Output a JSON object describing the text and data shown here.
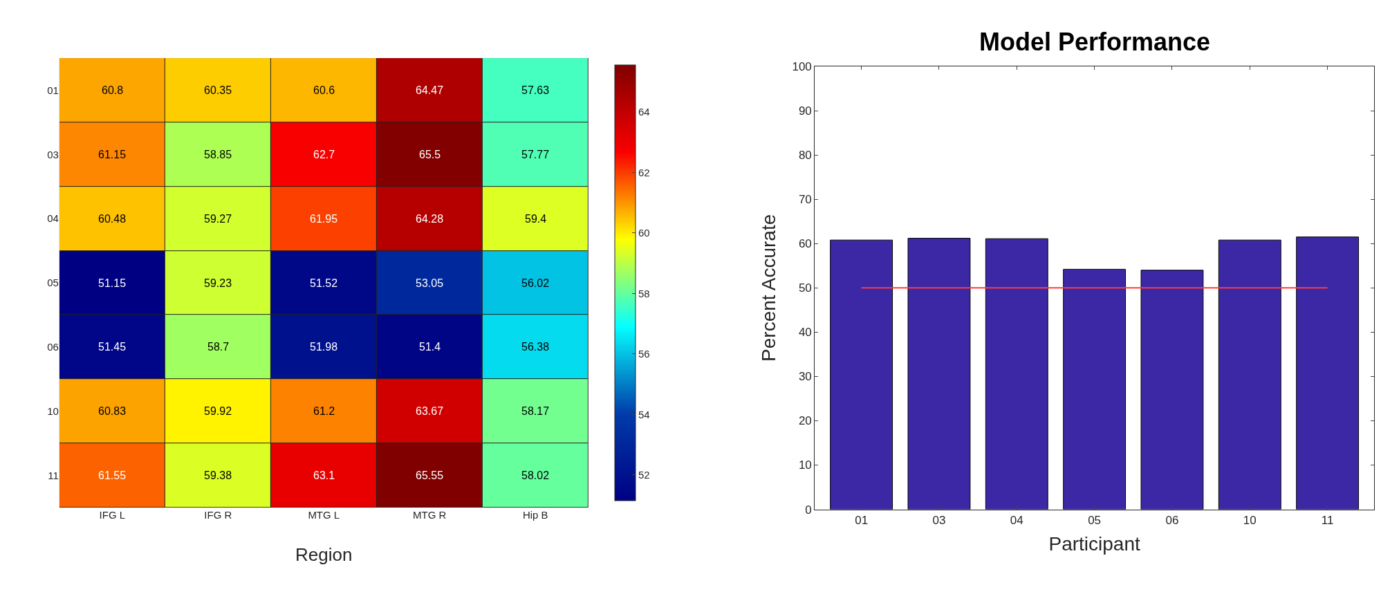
{
  "chart_data": [
    {
      "type": "heatmap",
      "xlabel": "Region",
      "categories": [
        "IFG L",
        "IFG R",
        "MTG L",
        "MTG R",
        "Hip B"
      ],
      "y_categories": [
        "01",
        "03",
        "04",
        "05",
        "06",
        "10",
        "11"
      ],
      "cells": [
        [
          60.8,
          60.35,
          60.6,
          64.47,
          57.63
        ],
        [
          61.15,
          58.85,
          62.7,
          65.5,
          57.77
        ],
        [
          60.48,
          59.27,
          61.95,
          64.28,
          59.4
        ],
        [
          51.15,
          59.23,
          51.52,
          53.05,
          56.02
        ],
        [
          51.45,
          58.7,
          51.98,
          51.4,
          56.38
        ],
        [
          60.83,
          59.92,
          61.2,
          63.67,
          58.17
        ],
        [
          61.55,
          59.38,
          63.1,
          65.55,
          58.02
        ]
      ],
      "data_labels": true,
      "clim": [
        51.15,
        65.55
      ],
      "cticks": [
        52,
        54,
        56,
        58,
        60,
        62,
        64
      ]
    },
    {
      "type": "bar",
      "title": "Model Performance",
      "xlabel": "Participant",
      "ylabel": "Percent Accurate",
      "categories": [
        "01",
        "03",
        "04",
        "05",
        "06",
        "10",
        "11"
      ],
      "values": [
        60.8,
        61.2,
        61.1,
        54.2,
        54.0,
        60.8,
        61.5
      ],
      "color": "#3c28a5",
      "ylim": [
        0,
        100
      ],
      "yticks": [
        0,
        10,
        20,
        30,
        40,
        50,
        60,
        70,
        80,
        90,
        100
      ],
      "ref_lines": [
        {
          "axis": "y",
          "value": 50,
          "color": "#ff3b3b"
        }
      ]
    }
  ]
}
